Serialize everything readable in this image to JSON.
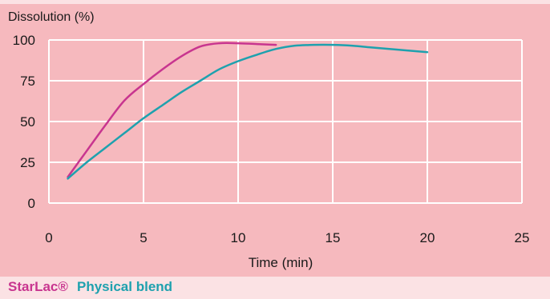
{
  "chart_data": {
    "type": "line",
    "ylabel": "Dissolution (%)",
    "xlabel": "Time (min)",
    "xlim": [
      0,
      25
    ],
    "ylim": [
      0,
      100
    ],
    "xticks": [
      0,
      5,
      10,
      15,
      20,
      25
    ],
    "yticks": [
      0,
      25,
      50,
      75,
      100
    ],
    "grid": true,
    "legend_position": "bottom-left",
    "series": [
      {
        "name": "StarLac®",
        "color": "#c8358f",
        "x": [
          1,
          2,
          3,
          4,
          5,
          6,
          7,
          8,
          9,
          10,
          11,
          12
        ],
        "y": [
          16,
          32,
          48,
          63,
          73,
          82,
          90,
          96,
          98,
          98,
          97.5,
          97
        ]
      },
      {
        "name": "Physical blend",
        "color": "#1ea1ae",
        "x": [
          1,
          2,
          3,
          4,
          5,
          6,
          7,
          8,
          9,
          10,
          11,
          12,
          13,
          14,
          15,
          16,
          17,
          18,
          19,
          20
        ],
        "y": [
          15,
          25,
          34,
          43,
          52,
          60,
          68,
          75,
          82,
          87,
          91,
          94.5,
          96.5,
          97,
          97,
          96.5,
          95.5,
          94.5,
          93.5,
          92.5
        ]
      }
    ]
  }
}
